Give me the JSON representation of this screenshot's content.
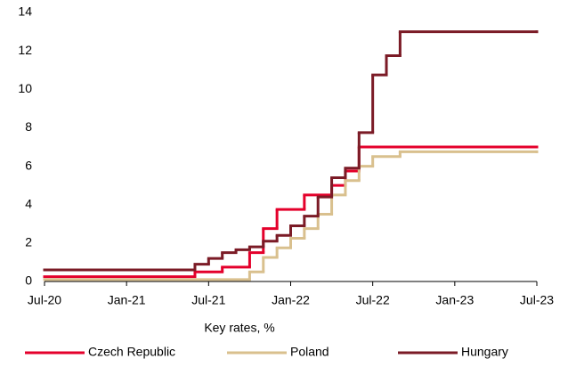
{
  "chart_data": {
    "type": "line",
    "step": "after",
    "x_label": "Key rates, %",
    "xlim": [
      "2020-07",
      "2023-07"
    ],
    "xticks": [
      {
        "value": "2020-07",
        "label": "Jul-20"
      },
      {
        "value": "2021-01",
        "label": "Jan-21"
      },
      {
        "value": "2021-07",
        "label": "Jul-21"
      },
      {
        "value": "2022-01",
        "label": "Jan-22"
      },
      {
        "value": "2022-07",
        "label": "Jul-22"
      },
      {
        "value": "2023-01",
        "label": "Jan-23"
      },
      {
        "value": "2023-07",
        "label": "Jul-23"
      }
    ],
    "ylim": [
      0,
      14
    ],
    "yticks": [
      0,
      2,
      4,
      6,
      8,
      10,
      12,
      14
    ],
    "grid": false,
    "legend": "bottom",
    "series": [
      {
        "name": "Czech Republic",
        "color": "#e4002b",
        "x": [
          "2020-07",
          "2021-06",
          "2021-08",
          "2021-10",
          "2021-11",
          "2021-12",
          "2022-02",
          "2022-04",
          "2022-05",
          "2022-06",
          "2023-07"
        ],
        "values": [
          0.25,
          0.5,
          0.75,
          1.5,
          2.75,
          3.75,
          4.5,
          5.0,
          5.75,
          7.0,
          7.0
        ]
      },
      {
        "name": "Poland",
        "color": "#d9c08e",
        "x": [
          "2020-07",
          "2021-10",
          "2021-11",
          "2021-12",
          "2022-01",
          "2022-02",
          "2022-03",
          "2022-04",
          "2022-05",
          "2022-06",
          "2022-07",
          "2022-09",
          "2023-07"
        ],
        "values": [
          0.1,
          0.5,
          1.25,
          1.75,
          2.25,
          2.75,
          3.5,
          4.5,
          5.25,
          6.0,
          6.5,
          6.75,
          6.75
        ]
      },
      {
        "name": "Hungary",
        "color": "#7b1b26",
        "x": [
          "2020-07",
          "2021-06",
          "2021-07",
          "2021-08",
          "2021-09",
          "2021-10",
          "2021-11",
          "2021-12",
          "2022-01",
          "2022-02",
          "2022-03",
          "2022-04",
          "2022-05",
          "2022-06",
          "2022-07",
          "2022-08",
          "2022-09",
          "2023-07"
        ],
        "values": [
          0.6,
          0.9,
          1.2,
          1.5,
          1.65,
          1.8,
          2.1,
          2.4,
          2.9,
          3.4,
          4.4,
          5.4,
          5.9,
          7.75,
          10.75,
          11.75,
          13.0,
          13.0
        ]
      }
    ]
  }
}
